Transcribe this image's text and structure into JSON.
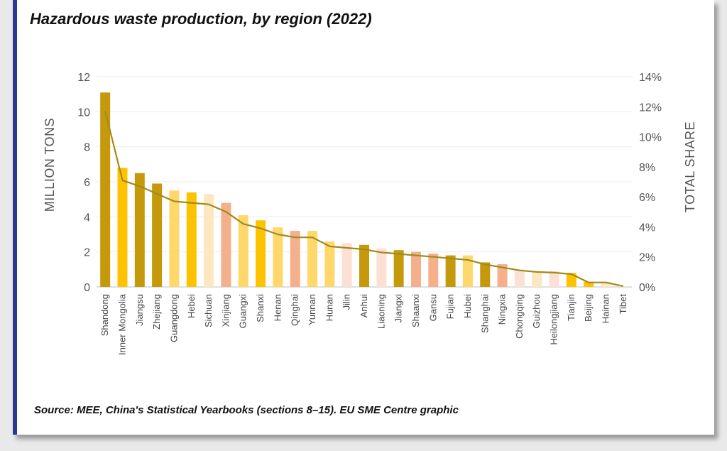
{
  "title": "Hazardous waste production, by region (2022)",
  "source": "Source: MEE, China's Statistical Yearbooks (sections 8–15). EU SME Centre graphic",
  "chart_data": {
    "type": "bar",
    "categories": [
      "Shandong",
      "Inner Mongolia",
      "Jiangsu",
      "Zhejiang",
      "Guangdong",
      "Hebei",
      "Sichuan",
      "Xinjiang",
      "Guangxi",
      "Shanxi",
      "Henan",
      "Qinghai",
      "Yunnan",
      "Hunan",
      "Jilin",
      "Anhui",
      "Liaoning",
      "Jiangxi",
      "Shaanxi",
      "Gansu",
      "Fujian",
      "Hubei",
      "Shanghai",
      "Ningxia",
      "Chongqing",
      "Guizhou",
      "Heilongjiang",
      "Tianjin",
      "Beijing",
      "Hainan",
      "Tibet"
    ],
    "series": [
      {
        "values": [
          11.1,
          6.8,
          6.5,
          5.9,
          5.5,
          5.4,
          5.3,
          4.8,
          4.1,
          3.8,
          3.4,
          3.2,
          3.2,
          2.6,
          2.5,
          2.4,
          2.2,
          2.1,
          2.0,
          1.9,
          1.8,
          1.8,
          1.4,
          1.3,
          1.0,
          0.9,
          0.9,
          0.8,
          0.3,
          0.3,
          0.05
        ]
      },
      {
        "axis": "right",
        "values": [
          11.7,
          7.1,
          6.7,
          6.2,
          5.7,
          5.6,
          5.5,
          5.0,
          4.2,
          3.9,
          3.5,
          3.3,
          3.3,
          2.7,
          2.6,
          2.5,
          2.3,
          2.2,
          2.1,
          2.0,
          1.9,
          1.8,
          1.5,
          1.3,
          1.1,
          1.0,
          0.95,
          0.85,
          0.3,
          0.3,
          0.05
        ]
      }
    ],
    "bar_colors": [
      "#c49a0c",
      "#fdc300",
      "#c49a0c",
      "#c49a0c",
      "#fed86b",
      "#fdc300",
      "#fde7c0",
      "#f4b08a",
      "#fed86b",
      "#fdc300",
      "#fed86b",
      "#f4b08a",
      "#fed86b",
      "#fed86b",
      "#fce0d4",
      "#c49a0c",
      "#fce0d4",
      "#c49a0c",
      "#f4b08a",
      "#f4b08a",
      "#c49a0c",
      "#fed86b",
      "#c49a0c",
      "#f4b08a",
      "#fce0d4",
      "#fde7c0",
      "#fce0d4",
      "#fdc300",
      "#fdc300",
      "#fde7c0",
      "#fde7c0"
    ],
    "line_color": "#a28a1c",
    "ylabel": "MILLION TONS",
    "y2label": "TOTAL SHARE",
    "ylim": [
      0,
      12
    ],
    "y2lim": [
      0,
      14
    ],
    "yticks": [
      "0",
      "2",
      "4",
      "6",
      "8",
      "10",
      "12"
    ],
    "y2ticks": [
      "0%",
      "2%",
      "4%",
      "6%",
      "8%",
      "10%",
      "12%",
      "14%"
    ],
    "grid": true
  }
}
